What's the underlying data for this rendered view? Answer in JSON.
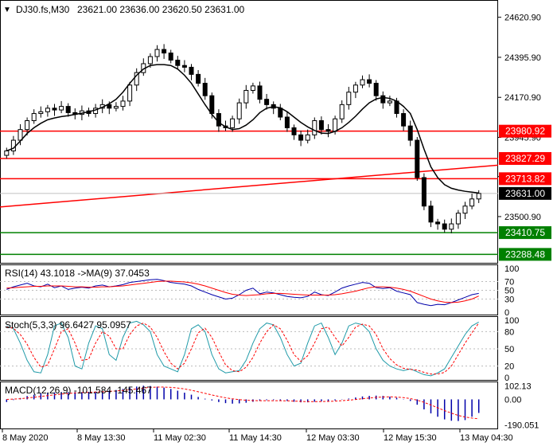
{
  "header": {
    "symbol": "DJ30.fs,M30",
    "ohlc": "23621.00 23636.00 23620.50 23631.00"
  },
  "colors": {
    "bull": "#000000",
    "bear": "#000000",
    "ma": "#000000",
    "resistance": "#ff0000",
    "support": "#008000",
    "current_price_tag_bg": "#000000",
    "rsi_line": "#0000aa",
    "rsi_signal": "#ff0000",
    "stoch_main": "#1f9aa8",
    "stoch_signal": "#ff0000",
    "macd_hist": "#0000aa",
    "macd_signal": "#ff0000",
    "grid": "#bbbbbb"
  },
  "chart_data": [
    {
      "type": "candlestick",
      "panel": "price",
      "y_axis_ticks": [
        "24620.90",
        "24395.90",
        "24170.90",
        "23945.90",
        "23725.90",
        "23500.90"
      ],
      "ylim": [
        23250,
        24700
      ],
      "current_price": "23631.00",
      "ma_series": [
        23870,
        23885,
        23925,
        23968,
        24000,
        24025,
        24045,
        24055,
        24063,
        24068,
        24075,
        24082,
        24090,
        24100,
        24115,
        24135,
        24160,
        24200,
        24250,
        24295,
        24330,
        24350,
        24355,
        24355,
        24350,
        24330,
        24295,
        24250,
        24190,
        24130,
        24075,
        24030,
        24005,
        23990,
        23995,
        24015,
        24045,
        24085,
        24110,
        24118,
        24112,
        24090,
        24060,
        24030,
        24005,
        23985,
        23970,
        23968,
        23980,
        24000,
        24030,
        24065,
        24105,
        24140,
        24162,
        24170,
        24165,
        24150,
        24120,
        24080,
        23990,
        23880,
        23780,
        23720,
        23680,
        23660,
        23650,
        23643,
        23638,
        23633
      ],
      "closes": [
        23870,
        23930,
        23990,
        24040,
        24080,
        24090,
        24110,
        24100,
        24120,
        24085,
        24075,
        24095,
        24080,
        24110,
        24130,
        24110,
        24120,
        24150,
        24240,
        24310,
        24360,
        24400,
        24440,
        24420,
        24380,
        24350,
        24340,
        24300,
        24250,
        24180,
        24080,
        24010,
        24000,
        24050,
        24140,
        24210,
        24235,
        24160,
        24130,
        24110,
        24060,
        24000,
        23960,
        23930,
        23960,
        24040,
        23990,
        23980,
        24050,
        24130,
        24200,
        24240,
        24270,
        24250,
        24180,
        24140,
        24150,
        24080,
        24010,
        23930,
        23720,
        23560,
        23470,
        23460,
        23430,
        23460,
        23520,
        23560,
        23600,
        23631
      ],
      "horizontal_levels": [
        {
          "value": "23980.92",
          "kind": "resistance"
        },
        {
          "value": "23827.29",
          "kind": "resistance"
        },
        {
          "value": "23713.82",
          "kind": "resistance"
        },
        {
          "value": "23410.75",
          "kind": "support"
        },
        {
          "value": "23288.48",
          "kind": "support"
        }
      ],
      "trendline": {
        "from": 23555,
        "to": 23790,
        "kind": "resistance"
      }
    },
    {
      "type": "line",
      "panel": "rsi",
      "label": "RSI(14) 43.1018 ->MA(9) 37.0453",
      "y_axis_ticks": [
        "100",
        "70",
        "50",
        "30",
        "0"
      ],
      "ylim": [
        0,
        100
      ],
      "series": [
        {
          "name": "RSI",
          "values": [
            52,
            58,
            62,
            66,
            60,
            58,
            64,
            56,
            60,
            52,
            55,
            57,
            55,
            60,
            62,
            58,
            60,
            63,
            68,
            70,
            72,
            74,
            75,
            72,
            68,
            66,
            64,
            60,
            52,
            46,
            40,
            35,
            30,
            32,
            40,
            50,
            55,
            42,
            46,
            44,
            40,
            36,
            34,
            33,
            36,
            46,
            40,
            38,
            46,
            55,
            60,
            64,
            68,
            66,
            56,
            54,
            56,
            48,
            44,
            40,
            22,
            18,
            15,
            18,
            17,
            22,
            28,
            34,
            40,
            43
          ]
        },
        {
          "name": "MA",
          "values": [
            55,
            56,
            57,
            58,
            59,
            59,
            60,
            60,
            60,
            59,
            58,
            58,
            57,
            57,
            58,
            58,
            59,
            60,
            62,
            64,
            66,
            68,
            70,
            71,
            71,
            70,
            69,
            67,
            64,
            60,
            55,
            50,
            45,
            41,
            39,
            38,
            39,
            40,
            42,
            43,
            43,
            42,
            41,
            40,
            39,
            39,
            39,
            39,
            40,
            42,
            45,
            48,
            52,
            56,
            58,
            58,
            57,
            55,
            52,
            48,
            42,
            36,
            30,
            26,
            23,
            22,
            23,
            26,
            30,
            37
          ]
        }
      ]
    },
    {
      "type": "line",
      "panel": "stochastic",
      "label": "Stoch(5,3,3) 96.6427 95.0957",
      "y_axis_ticks": [
        "100",
        "80",
        "50",
        "20",
        "0"
      ],
      "ylim": [
        0,
        100
      ],
      "series": [
        {
          "name": "%K",
          "values": [
            90,
            85,
            60,
            30,
            10,
            8,
            40,
            90,
            95,
            70,
            20,
            15,
            60,
            90,
            85,
            40,
            30,
            70,
            95,
            98,
            92,
            80,
            40,
            20,
            15,
            10,
            40,
            85,
            92,
            80,
            40,
            15,
            8,
            10,
            12,
            30,
            60,
            85,
            95,
            92,
            70,
            40,
            20,
            25,
            60,
            90,
            95,
            70,
            40,
            60,
            90,
            95,
            92,
            80,
            50,
            30,
            20,
            15,
            12,
            15,
            10,
            5,
            3,
            8,
            15,
            35,
            55,
            75,
            90,
            96.6
          ]
        },
        {
          "name": "%D",
          "values": [
            88,
            86,
            75,
            58,
            35,
            18,
            22,
            50,
            80,
            85,
            60,
            30,
            32,
            60,
            80,
            72,
            50,
            50,
            75,
            90,
            95,
            88,
            70,
            45,
            25,
            15,
            25,
            50,
            78,
            86,
            70,
            45,
            22,
            12,
            10,
            18,
            35,
            60,
            80,
            92,
            85,
            65,
            40,
            28,
            38,
            60,
            85,
            88,
            70,
            55,
            70,
            88,
            93,
            90,
            75,
            50,
            33,
            22,
            16,
            14,
            13,
            9,
            6,
            6,
            9,
            20,
            40,
            60,
            78,
            95.1
          ]
        }
      ]
    },
    {
      "type": "bar",
      "panel": "macd",
      "label": "MACD(12,26,9) -101.584 -145.467",
      "y_axis_ticks": [
        "102.13",
        "0.00",
        "-190.051"
      ],
      "ylim": [
        -200,
        110
      ],
      "series": [
        {
          "name": "MACD",
          "values": [
            -20,
            -5,
            10,
            25,
            35,
            45,
            50,
            52,
            55,
            55,
            54,
            55,
            56,
            58,
            62,
            66,
            70,
            78,
            88,
            96,
            102,
            100,
            95,
            88,
            78,
            65,
            50,
            35,
            18,
            5,
            -8,
            -20,
            -28,
            -32,
            -30,
            -25,
            -18,
            -10,
            -6,
            -5,
            -8,
            -12,
            -18,
            -22,
            -22,
            -18,
            -14,
            -12,
            -8,
            -2,
            6,
            14,
            22,
            26,
            28,
            26,
            20,
            12,
            2,
            -12,
            -40,
            -75,
            -105,
            -130,
            -150,
            -160,
            -162,
            -155,
            -130,
            -101.6
          ]
        },
        {
          "name": "Signal",
          "values": [
            0,
            2,
            5,
            10,
            16,
            22,
            28,
            34,
            40,
            44,
            48,
            51,
            53,
            55,
            57,
            60,
            63,
            67,
            72,
            78,
            85,
            90,
            92,
            92,
            90,
            85,
            78,
            68,
            57,
            45,
            33,
            22,
            12,
            4,
            -2,
            -6,
            -9,
            -10,
            -10,
            -10,
            -10,
            -11,
            -13,
            -15,
            -17,
            -17,
            -16,
            -15,
            -13,
            -10,
            -6,
            -1,
            5,
            10,
            15,
            18,
            19,
            17,
            13,
            6,
            -6,
            -22,
            -42,
            -63,
            -84,
            -103,
            -120,
            -132,
            -140,
            -145.5
          ]
        }
      ]
    }
  ],
  "x_axis": {
    "labels": [
      "8 May 2020",
      "8 May 13:30",
      "11 May 02:30",
      "11 May 14:30",
      "12 May 03:30",
      "12 May 15:30",
      "13 May 04:30"
    ]
  }
}
